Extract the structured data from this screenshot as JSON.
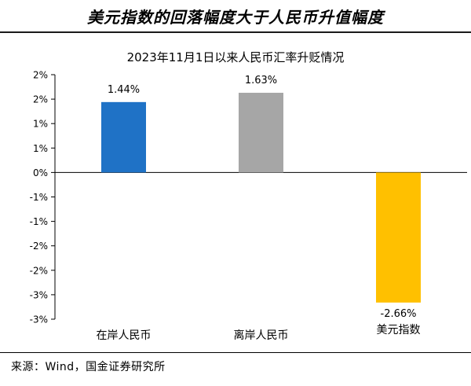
{
  "header": {
    "title": "美元指数的回落幅度大于人民币升值幅度"
  },
  "chart_data": {
    "type": "bar",
    "title": "2023年11月1日以来人民币汇率升贬情况",
    "categories": [
      "在岸人民币",
      "离岸人民币",
      "美元指数"
    ],
    "values": [
      1.44,
      1.63,
      -2.66
    ],
    "value_labels": [
      "1.44%",
      "1.63%",
      "-2.66%"
    ],
    "colors": [
      "#1f72c6",
      "#a6a6a6",
      "#ffc000"
    ],
    "ylim": [
      -3,
      2
    ],
    "y_ticks": [
      {
        "value": 2.0,
        "label": "2%"
      },
      {
        "value": 1.5,
        "label": "2%"
      },
      {
        "value": 1.0,
        "label": "1%"
      },
      {
        "value": 0.5,
        "label": "1%"
      },
      {
        "value": 0.0,
        "label": "0%"
      },
      {
        "value": -0.5,
        "label": "-1%"
      },
      {
        "value": -1.0,
        "label": "-1%"
      },
      {
        "value": -1.5,
        "label": "-2%"
      },
      {
        "value": -2.0,
        "label": "-2%"
      },
      {
        "value": -2.5,
        "label": "-3%"
      },
      {
        "value": -3.0,
        "label": "-3%"
      }
    ],
    "xlabel": "",
    "ylabel": "",
    "grid": false,
    "legend": "none"
  },
  "footer": {
    "source": "来源：Wind，国金证券研究所"
  }
}
